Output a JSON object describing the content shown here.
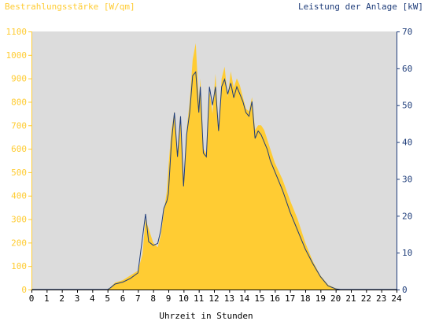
{
  "chart_data": {
    "type": "area",
    "title_left": "Bestrahlungsstärke [W/qm]",
    "title_right": "Leistung der Anlage [kW]",
    "xlabel": "Uhrzeit in Stunden",
    "xlim": [
      0,
      24
    ],
    "ylim_left": [
      0,
      1100
    ],
    "ylim_right": [
      0,
      70
    ],
    "x_ticks": [
      "0",
      "1",
      "2",
      "3",
      "4",
      "5",
      "6",
      "7",
      "8",
      "9",
      "10",
      "11",
      "12",
      "13",
      "14",
      "15",
      "16",
      "17",
      "18",
      "19",
      "20",
      "21",
      "22",
      "23",
      "24"
    ],
    "y_ticks_left": [
      "0",
      "100",
      "200",
      "300",
      "400",
      "500",
      "600",
      "700",
      "800",
      "900",
      "1000",
      "1100"
    ],
    "y_ticks_right": [
      "0",
      "10",
      "20",
      "30",
      "40",
      "50",
      "60",
      "70"
    ],
    "grid": false,
    "colors": {
      "irradiance": "#ffcc33",
      "power": "#1f3d7a",
      "plot_bg": "#dcdcdc"
    },
    "series": [
      {
        "name": "Bestrahlungsstärke",
        "axis": "left",
        "x": [
          0,
          5.0,
          5.2,
          5.5,
          6.0,
          6.5,
          7.0,
          7.3,
          7.5,
          7.7,
          8.0,
          8.3,
          8.5,
          8.7,
          8.9,
          9.0,
          9.2,
          9.4,
          9.6,
          9.8,
          10.0,
          10.2,
          10.4,
          10.6,
          10.8,
          11.0,
          11.1,
          11.3,
          11.5,
          11.7,
          11.9,
          12.1,
          12.3,
          12.5,
          12.7,
          12.9,
          13.1,
          13.3,
          13.5,
          13.7,
          13.9,
          14.1,
          14.3,
          14.5,
          14.7,
          14.9,
          15.1,
          15.3,
          15.5,
          15.7,
          16.0,
          16.5,
          17.0,
          17.5,
          18.0,
          18.5,
          19.0,
          19.5,
          20.0,
          20.3,
          20.5,
          24
        ],
        "values": [
          0,
          0,
          10,
          30,
          40,
          60,
          80,
          150,
          300,
          260,
          200,
          180,
          230,
          330,
          420,
          520,
          680,
          760,
          580,
          730,
          450,
          680,
          800,
          980,
          1050,
          800,
          900,
          600,
          580,
          850,
          750,
          920,
          680,
          900,
          950,
          820,
          930,
          860,
          900,
          870,
          820,
          770,
          760,
          820,
          680,
          700,
          700,
          680,
          640,
          600,
          540,
          470,
          380,
          300,
          200,
          120,
          60,
          20,
          5,
          0,
          0,
          0
        ]
      },
      {
        "name": "Leistung der Anlage",
        "axis": "right",
        "x": [
          0,
          5.0,
          5.2,
          5.5,
          6.0,
          6.5,
          7.0,
          7.3,
          7.5,
          7.7,
          8.0,
          8.3,
          8.5,
          8.7,
          8.9,
          9.0,
          9.2,
          9.4,
          9.6,
          9.8,
          10.0,
          10.2,
          10.4,
          10.6,
          10.8,
          11.0,
          11.1,
          11.3,
          11.5,
          11.7,
          11.9,
          12.1,
          12.3,
          12.5,
          12.7,
          12.9,
          13.1,
          13.3,
          13.5,
          13.7,
          13.9,
          14.1,
          14.3,
          14.5,
          14.7,
          14.9,
          15.1,
          15.3,
          15.5,
          15.7,
          16.0,
          16.5,
          17.0,
          17.5,
          18.0,
          18.5,
          19.0,
          19.5,
          20.0,
          20.3,
          20.5,
          24
        ],
        "values": [
          0,
          0,
          0.5,
          1.5,
          2,
          3,
          4.5,
          14,
          20.5,
          13,
          12,
          12.5,
          16,
          22,
          24,
          26,
          40,
          48,
          36,
          47,
          28,
          42,
          48,
          58,
          59,
          48,
          55,
          37,
          36,
          55,
          50,
          55,
          43,
          55,
          57,
          53,
          56,
          52,
          55,
          53,
          51,
          48,
          47,
          51,
          41,
          43,
          42,
          40,
          38,
          35,
          32,
          27,
          21,
          16,
          11,
          7,
          3.5,
          1,
          0.2,
          0,
          0,
          0
        ]
      }
    ]
  }
}
